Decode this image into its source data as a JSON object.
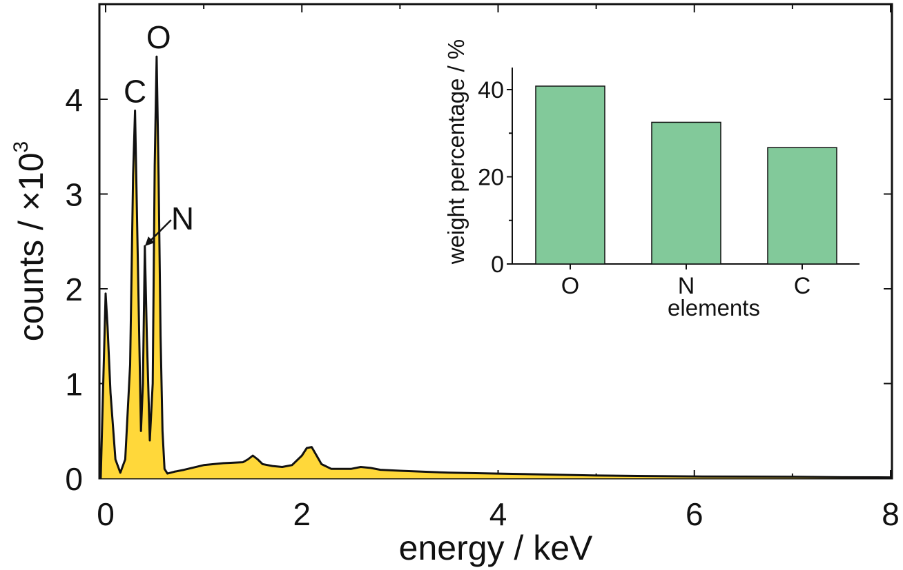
{
  "chart_data": [
    {
      "type": "area",
      "xlabel": "energy / keV",
      "ylabel": "counts / ×10",
      "ylabel_superscript": "3",
      "xlim": [
        -0.1,
        8
      ],
      "ylim": [
        0,
        5
      ],
      "xticks": [
        "0",
        "2",
        "4",
        "6",
        "8"
      ],
      "yticks": [
        "0",
        "1",
        "2",
        "3",
        "4"
      ],
      "grid": false,
      "fill_color": "#FFD83A",
      "line_color": "#111111",
      "series": [
        {
          "x": [
            -0.05,
            0.0,
            0.02,
            0.05,
            0.1,
            0.15,
            0.2,
            0.25,
            0.28,
            0.3,
            0.33,
            0.36,
            0.38,
            0.4,
            0.42,
            0.45,
            0.48,
            0.5,
            0.52,
            0.54,
            0.56,
            0.58,
            0.6,
            0.63,
            0.7,
            0.8,
            1.0,
            1.2,
            1.4,
            1.45,
            1.5,
            1.55,
            1.6,
            1.7,
            1.8,
            1.9,
            2.0,
            2.05,
            2.1,
            2.15,
            2.2,
            2.3,
            2.5,
            2.6,
            2.7,
            2.8,
            3.0,
            3.5,
            4.0,
            4.5,
            5.0,
            5.5,
            6.0,
            6.5,
            7.0,
            7.5,
            8.0
          ],
          "y": [
            0.0,
            1.95,
            1.6,
            0.9,
            0.2,
            0.06,
            0.2,
            1.2,
            3.2,
            3.88,
            2.2,
            0.5,
            1.0,
            2.45,
            1.5,
            0.4,
            1.0,
            3.3,
            4.45,
            3.2,
            1.5,
            0.5,
            0.1,
            0.05,
            0.07,
            0.09,
            0.14,
            0.16,
            0.17,
            0.2,
            0.24,
            0.2,
            0.15,
            0.13,
            0.12,
            0.14,
            0.24,
            0.32,
            0.33,
            0.24,
            0.15,
            0.1,
            0.1,
            0.12,
            0.11,
            0.09,
            0.08,
            0.06,
            0.05,
            0.04,
            0.03,
            0.025,
            0.02,
            0.018,
            0.016,
            0.012,
            0.01
          ]
        }
      ],
      "annotations": [
        {
          "text": "C",
          "x": 0.3,
          "y": 3.88
        },
        {
          "text": "O",
          "x": 0.54,
          "y": 4.45
        },
        {
          "text": "N",
          "x": 0.4,
          "y": 2.45,
          "arrow": true
        }
      ]
    },
    {
      "type": "bar",
      "categories": [
        "O",
        "N",
        "C"
      ],
      "values": [
        40.8,
        32.5,
        26.7
      ],
      "xlabel": "elements",
      "ylabel": "weight percentage / %",
      "ylim": [
        0,
        45
      ],
      "yticks": [
        "0",
        "20",
        "40"
      ],
      "grid": false,
      "bar_color": "#82C99A",
      "legend": "none",
      "placement": "inset-top-right"
    }
  ]
}
